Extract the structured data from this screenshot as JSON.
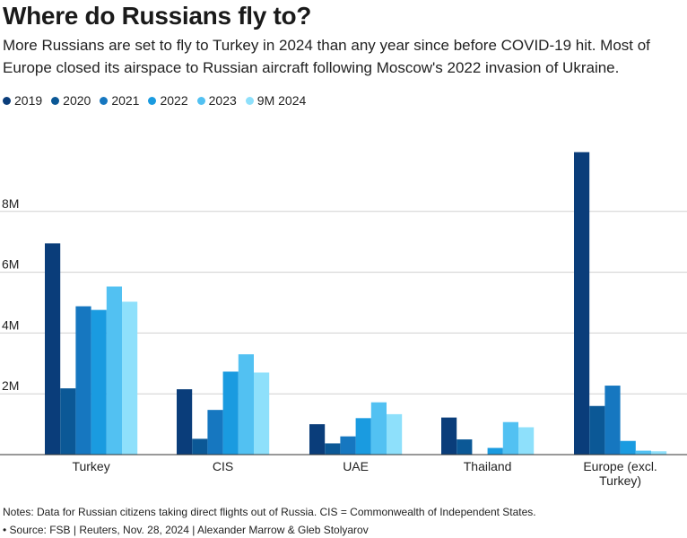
{
  "header": {
    "title": "Where do Russians fly to?",
    "subtitle": "More Russians are set to fly to Turkey in 2024 than any year since before COVID-19 hit. Most of Europe closed its airspace to Russian aircraft following Moscow's 2022 invasion of Ukraine."
  },
  "footer": {
    "notes": "Notes: Data for Russian citizens taking direct flights out of Russia. CIS = Commonwealth of Independent States.",
    "source": "• Source: FSB | Reuters, Nov. 28, 2024 | Alexander Marrow & Gleb Stolyarov"
  },
  "chart_data": {
    "type": "bar",
    "title": "Where do Russians fly to?",
    "xlabel": "",
    "ylabel": "",
    "ylim": [
      0,
      10000000
    ],
    "yticks": [
      2000000,
      4000000,
      6000000,
      8000000
    ],
    "ytick_labels": [
      "2M",
      "4M",
      "6M",
      "8M"
    ],
    "grid": true,
    "legend_position": "top-left",
    "categories": [
      "Turkey",
      "CIS",
      "UAE",
      "Thailand",
      "Europe (excl. Turkey)"
    ],
    "category_labels": [
      [
        "Turkey"
      ],
      [
        "CIS"
      ],
      [
        "UAE"
      ],
      [
        "Thailand"
      ],
      [
        "Europe (excl.",
        "Turkey)"
      ]
    ],
    "series": [
      {
        "name": "2019",
        "color": "#0a3d7a",
        "values": [
          6950000,
          2150000,
          1000000,
          1220000,
          9950000
        ]
      },
      {
        "name": "2020",
        "color": "#0b5896",
        "values": [
          2180000,
          520000,
          370000,
          500000,
          1600000
        ]
      },
      {
        "name": "2021",
        "color": "#1677c0",
        "values": [
          4880000,
          1470000,
          600000,
          0,
          2270000
        ]
      },
      {
        "name": "2022",
        "color": "#1a9be0",
        "values": [
          4760000,
          2730000,
          1200000,
          220000,
          450000
        ]
      },
      {
        "name": "2023",
        "color": "#52c1f2",
        "values": [
          5530000,
          3300000,
          1720000,
          1070000,
          130000
        ]
      },
      {
        "name": "9M 2024",
        "color": "#8ee0fb",
        "values": [
          5030000,
          2700000,
          1330000,
          900000,
          110000
        ]
      }
    ]
  }
}
